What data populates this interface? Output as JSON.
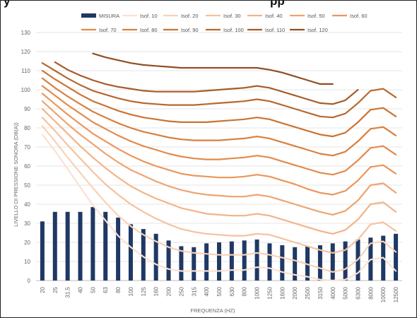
{
  "header": {
    "title_left": "y",
    "title_right": "pp"
  },
  "chart_data": {
    "type": "bar",
    "xlabel": "FREQUENZA (HZ)",
    "ylabel": "LIVELLO DI PRESSIONE SONORA (DB(A))",
    "ylim": [
      0,
      130
    ],
    "yticks": [
      0,
      10,
      20,
      30,
      40,
      50,
      60,
      70,
      80,
      90,
      100,
      110,
      120,
      130
    ],
    "grid": true,
    "legend_position": "top",
    "categories": [
      "20",
      "25",
      "31,5",
      "40",
      "50",
      "63",
      "80",
      "100",
      "125",
      "160",
      "200",
      "250",
      "315",
      "400",
      "500",
      "630",
      "800",
      "1000",
      "1250",
      "1600",
      "2000",
      "2500",
      "3150",
      "4000",
      "5000",
      "6300",
      "8000",
      "10000",
      "12500"
    ],
    "bar_series": {
      "name": "MISURA",
      "color": "#1f3864",
      "values": [
        31,
        36,
        36,
        36,
        38.5,
        36,
        33,
        29.5,
        27,
        24.5,
        21,
        18,
        17.5,
        19.5,
        20,
        20.5,
        21,
        21.5,
        19.5,
        18.5,
        17.5,
        18,
        18.5,
        19.5,
        20.5,
        21.5,
        22.5,
        23.5,
        24.5
      ]
    },
    "series": [
      {
        "name": "Isof. 10",
        "color": "#fbe1d1",
        "values": [
          76.5,
          68,
          58.5,
          49,
          39.5,
          31.5,
          23.5,
          17.5,
          12.5,
          8.5,
          6,
          5,
          5,
          5,
          5,
          5.5,
          5.5,
          7,
          6.5,
          4.5,
          3,
          2,
          0.5,
          0,
          0.5,
          4,
          11,
          12,
          5
        ]
      },
      {
        "name": "Isof. 20",
        "color": "#f8d2b8",
        "values": [
          81,
          73,
          64.5,
          56.5,
          48.5,
          41,
          34,
          28.5,
          24,
          20.5,
          17.5,
          15.5,
          14.5,
          14,
          13.5,
          13.5,
          13.5,
          14.5,
          13.5,
          12,
          10.5,
          8.5,
          6.5,
          4.5,
          6,
          11,
          19.5,
          20.5,
          15
        ]
      },
      {
        "name": "Isof. 30",
        "color": "#f5c29f",
        "values": [
          85.5,
          78.5,
          71,
          64,
          57,
          50.5,
          45,
          40,
          36,
          32.5,
          29.5,
          27,
          25.5,
          24.5,
          24,
          23.5,
          23.5,
          24.5,
          24,
          22,
          20,
          18,
          16,
          14.5,
          16,
          21.5,
          29.5,
          30.5,
          26
        ]
      },
      {
        "name": "Isof. 40",
        "color": "#f2b487",
        "values": [
          90,
          83.5,
          77,
          70.5,
          64.5,
          59,
          54,
          49.5,
          46,
          43,
          40.5,
          38,
          36.5,
          35,
          34.5,
          34,
          34,
          35,
          34,
          32,
          30,
          28,
          26,
          24.5,
          26.5,
          32,
          40,
          41,
          36
        ]
      },
      {
        "name": "Isof. 50",
        "color": "#eea470",
        "values": [
          94,
          88,
          82,
          76.5,
          71.5,
          66.5,
          62,
          58,
          55,
          52,
          49.5,
          47.5,
          46,
          45,
          44.5,
          44,
          44,
          45,
          44,
          42,
          40,
          38,
          36,
          34.5,
          36.5,
          42,
          50,
          51,
          46
        ]
      },
      {
        "name": "Isof. 60",
        "color": "#eb965c",
        "values": [
          98,
          92.5,
          87,
          82,
          77,
          73,
          69,
          65.5,
          62.5,
          60,
          58,
          56,
          55,
          54.5,
          54,
          54,
          54.5,
          55.5,
          54.5,
          52.5,
          50.5,
          48,
          46,
          45,
          47,
          52.5,
          59.5,
          60.5,
          56
        ]
      },
      {
        "name": "Isof. 70",
        "color": "#e38a4c",
        "values": [
          102,
          97,
          92,
          87.5,
          83,
          79.5,
          76,
          73,
          70.5,
          68.5,
          66.5,
          65,
          64,
          63.5,
          63.5,
          64,
          64.5,
          65.5,
          64.5,
          62.5,
          60.5,
          58.5,
          56.5,
          55.5,
          57.5,
          63,
          69.5,
          70.5,
          66
        ]
      },
      {
        "name": "Isof. 80",
        "color": "#d97f3e",
        "values": [
          106,
          101,
          96.5,
          92.5,
          88.5,
          85.5,
          82.5,
          80,
          78,
          76.5,
          75,
          74,
          73.5,
          73.5,
          73.5,
          74,
          74.5,
          75.5,
          74.5,
          72.5,
          70.5,
          68.5,
          66.5,
          65.5,
          67.5,
          73,
          79.5,
          80.5,
          76
        ]
      },
      {
        "name": "Isof. 90",
        "color": "#c97434",
        "values": [
          110,
          105.5,
          101.5,
          97.5,
          94,
          91.5,
          89,
          87,
          85.5,
          84.5,
          83.5,
          83,
          83,
          83,
          83.5,
          84,
          84.5,
          85.5,
          84.5,
          82.5,
          80.5,
          78.5,
          76.5,
          75.5,
          77.5,
          83,
          89.5,
          90.5,
          86
        ]
      },
      {
        "name": "Isof. 100",
        "color": "#b8672d",
        "values": [
          114,
          110,
          106,
          102.5,
          99.5,
          97.5,
          95.5,
          94,
          93,
          92.5,
          92,
          92,
          92,
          92.5,
          93,
          93.5,
          94,
          95,
          94,
          92,
          90,
          88,
          86,
          85.5,
          87.5,
          93,
          99.5,
          100.5,
          96
        ]
      },
      {
        "name": "Isof. 110",
        "color": "#a85c28",
        "values": [
          null,
          114.5,
          110.5,
          107.5,
          105,
          103,
          101.5,
          100.5,
          99.5,
          99,
          99,
          99,
          99,
          99.5,
          100,
          100.5,
          101,
          102,
          101,
          99,
          97,
          95,
          93,
          92.5,
          94.5,
          100,
          null,
          null,
          null
        ]
      },
      {
        "name": "Isof. 120",
        "color": "#8f4f23",
        "values": [
          null,
          null,
          null,
          null,
          119,
          117,
          115.5,
          114,
          113,
          112.5,
          112,
          111.5,
          111.5,
          111.5,
          111.5,
          111.5,
          111.5,
          111.5,
          110.5,
          109,
          107,
          105,
          103,
          103,
          null,
          null,
          null,
          null,
          null
        ]
      }
    ]
  }
}
